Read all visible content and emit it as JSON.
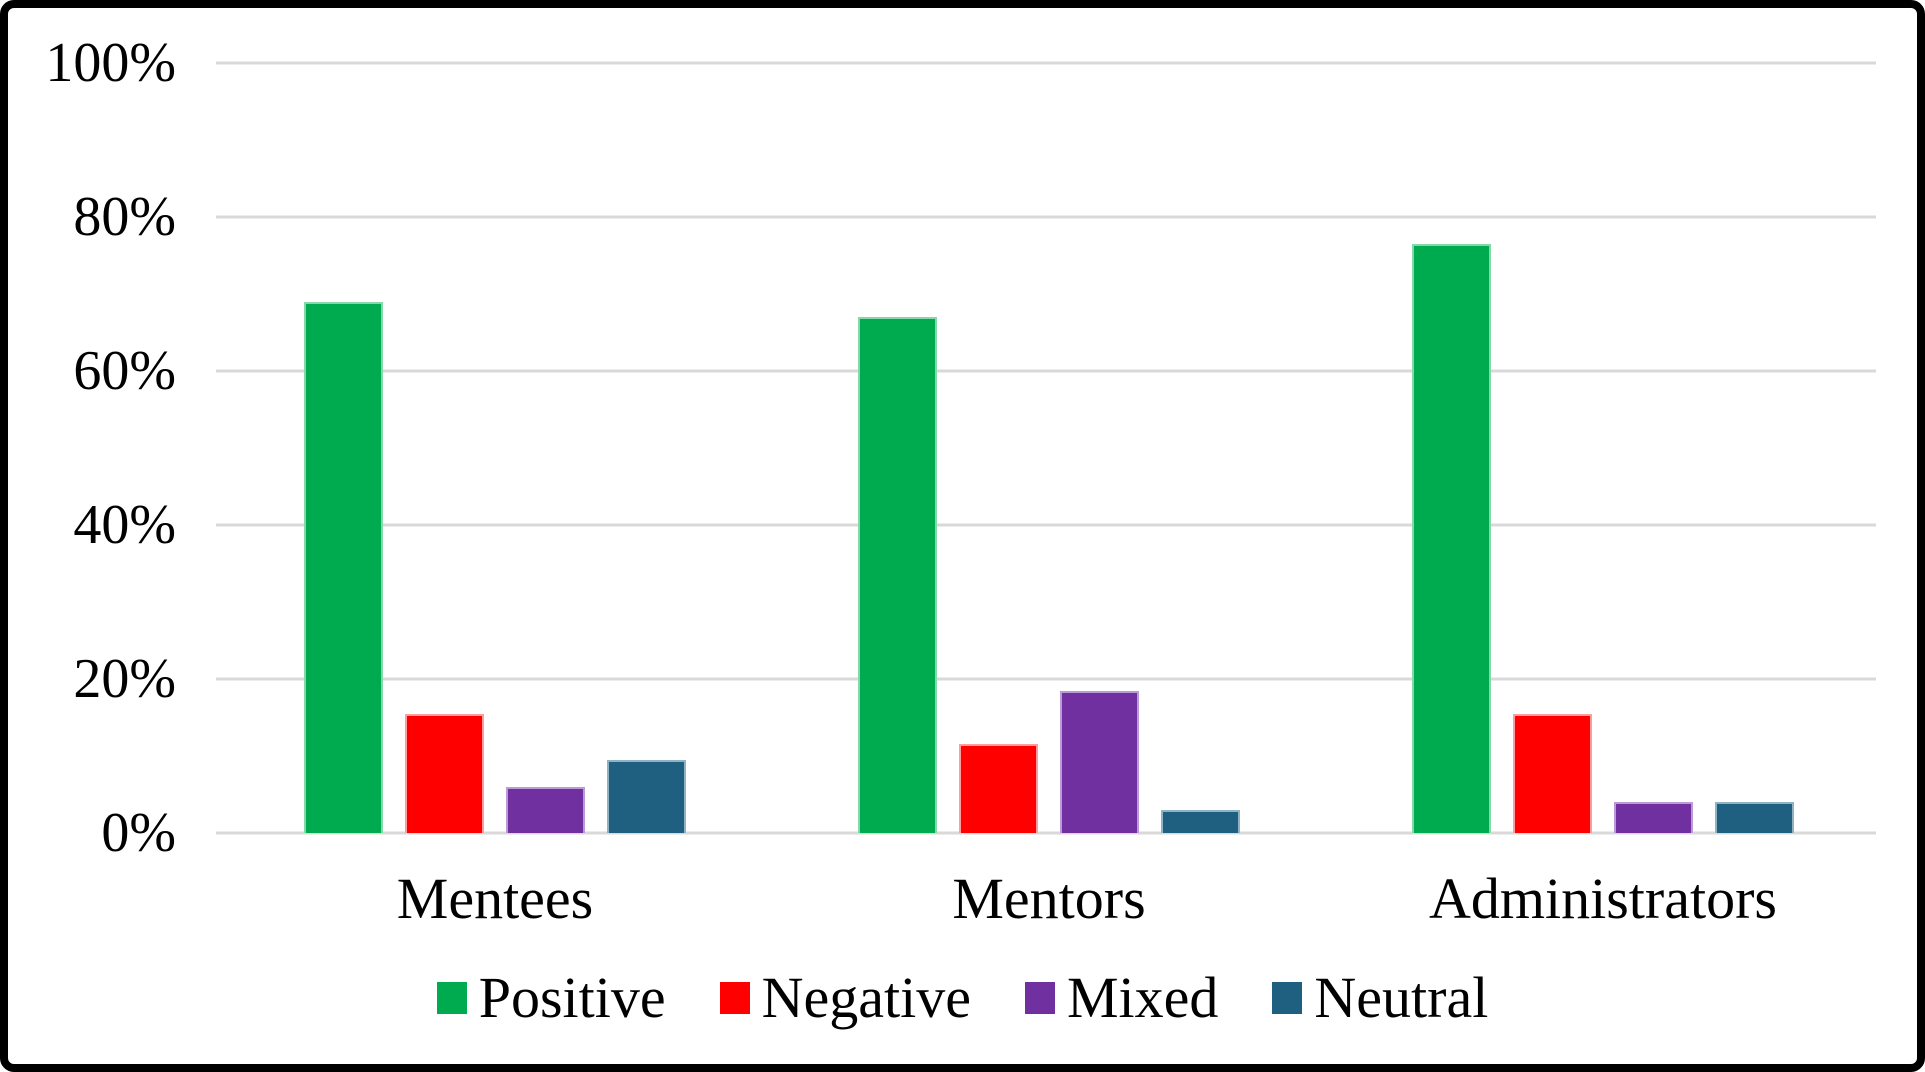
{
  "chart_data": {
    "type": "bar",
    "title": "",
    "xlabel": "",
    "ylabel": "",
    "categories": [
      "Mentees",
      "Mentors",
      "Administrators"
    ],
    "series": [
      {
        "name": "Positive",
        "color": "#00AB50",
        "border_color": "#87D7AB",
        "values": [
          69,
          67,
          76.5
        ]
      },
      {
        "name": "Negative",
        "color": "#FF0000",
        "border_color": "#FF9C9C",
        "values": [
          15.5,
          11.5,
          15.5
        ]
      },
      {
        "name": "Mixed",
        "color": "#7030A0",
        "border_color": "#BC9AD6",
        "values": [
          6,
          18.5,
          4
        ]
      },
      {
        "name": "Neutral",
        "color": "#1F5F7F",
        "border_color": "#8FB3C4",
        "values": [
          9.5,
          3,
          4
        ]
      }
    ],
    "ylim": [
      0,
      100
    ],
    "yticks": [
      {
        "value": 0,
        "label": "0%"
      },
      {
        "value": 20,
        "label": "20%"
      },
      {
        "value": 40,
        "label": "40%"
      },
      {
        "value": 60,
        "label": "60%"
      },
      {
        "value": 80,
        "label": "80%"
      },
      {
        "value": 100,
        "label": "100%"
      }
    ],
    "grid": true,
    "gridline_color": "#D9D9D9",
    "frame_color": "#000000",
    "legend_position": "bottom"
  }
}
